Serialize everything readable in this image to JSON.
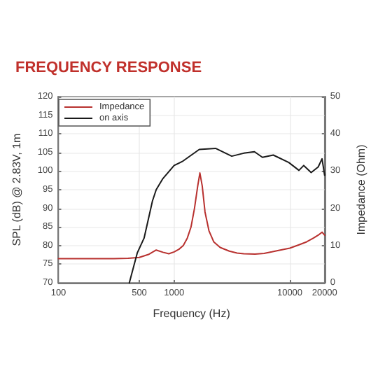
{
  "chart_data": {
    "type": "line",
    "title": "FREQUENCY RESPONSE",
    "xlabel": "Frequency (Hz)",
    "ylabel": "SPL (dB) @ 2.83V, 1m",
    "y2label": "Impedance (Ohm)",
    "log": "x",
    "xlim": [
      100,
      20000
    ],
    "xticks": [
      100,
      500,
      1000,
      10000,
      20000
    ],
    "ylim": [
      70,
      120
    ],
    "yticks": [
      70,
      75,
      80,
      85,
      90,
      95,
      100,
      105,
      110,
      115,
      120
    ],
    "y2lim": [
      0,
      50
    ],
    "y2ticks": [
      0,
      10,
      20,
      30,
      40,
      50
    ],
    "grid": true,
    "legend": "top left",
    "line_style": "solid",
    "marker": "none",
    "series": [
      {
        "name": "Impedance",
        "color": "#b8312f",
        "axis": "y2",
        "x": [
          100,
          200,
          300,
          400,
          500,
          600,
          700,
          800,
          900,
          1000,
          1100,
          1200,
          1300,
          1400,
          1500,
          1600,
          1670,
          1750,
          1850,
          2000,
          2200,
          2500,
          3000,
          3500,
          4000,
          5000,
          6000,
          7000,
          8000,
          10000,
          12000,
          14000,
          16000,
          18000,
          19000,
          20000
        ],
        "values": [
          6.5,
          6.5,
          6.5,
          6.6,
          6.8,
          7.6,
          8.8,
          8.2,
          7.8,
          8.3,
          9,
          10,
          12,
          15,
          20,
          26,
          29.5,
          26,
          19,
          14,
          11,
          9.5,
          8.5,
          8,
          7.8,
          7.7,
          7.9,
          8.3,
          8.7,
          9.3,
          10.2,
          11,
          12,
          13,
          13.6,
          12.8
        ]
      },
      {
        "name": "on axis",
        "color": "#1a1a1a",
        "axis": "y",
        "x": [
          410,
          480,
          550,
          650,
          700,
          800,
          1000,
          1194,
          1650,
          2280,
          3150,
          4000,
          4950,
          5800,
          7200,
          9800,
          12000,
          13200,
          15300,
          17600,
          19000,
          20000
        ],
        "values": [
          70,
          78,
          82,
          92,
          95,
          98,
          101.5,
          102.7,
          105.8,
          106.1,
          104,
          104.8,
          105.2,
          103.7,
          104.3,
          102.3,
          100.2,
          101.5,
          99.6,
          101.1,
          103.3,
          98.9
        ]
      }
    ]
  }
}
